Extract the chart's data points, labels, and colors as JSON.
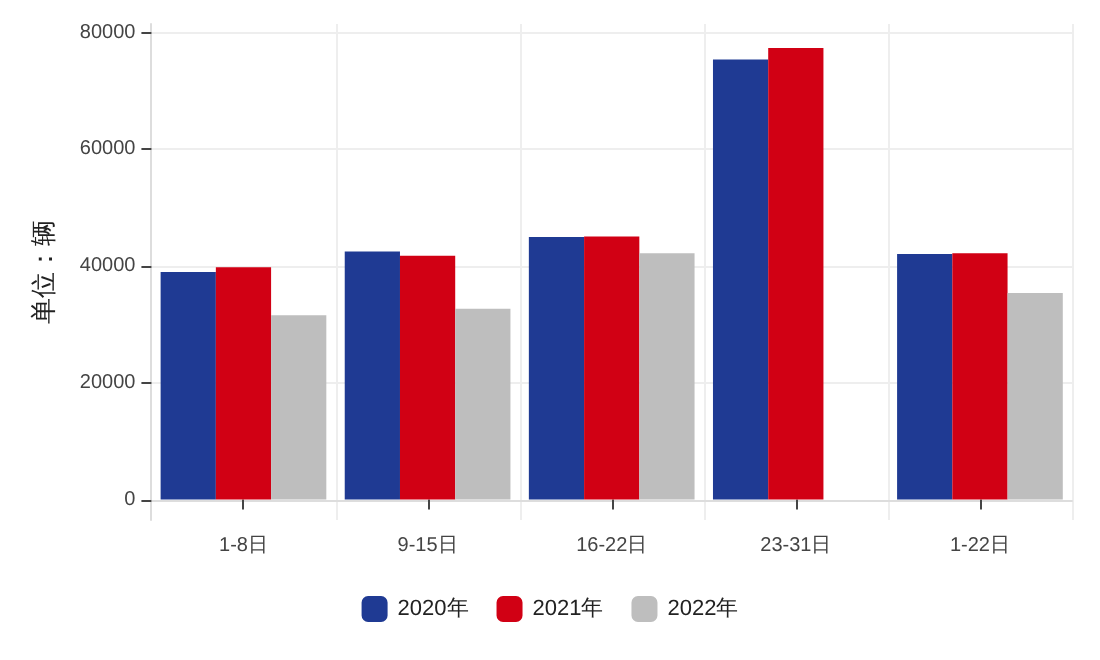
{
  "chart_data": {
    "type": "bar",
    "ylabel": "单位：辆",
    "categories": [
      "1-8日",
      "9-15日",
      "16-22日",
      "23-31日",
      "1-22日"
    ],
    "series": [
      {
        "name": "2020年",
        "color": "#1f3a93",
        "values": [
          39000,
          42500,
          45000,
          75400,
          42100
        ]
      },
      {
        "name": "2021年",
        "color": "#d10014",
        "values": [
          39800,
          41800,
          45100,
          77400,
          42200
        ]
      },
      {
        "name": "2022年",
        "color": "#bebebe",
        "values": [
          31600,
          32700,
          42200,
          null,
          35400
        ]
      }
    ],
    "ylim": [
      -3500,
      81500
    ],
    "yticks": [
      0,
      20000,
      40000,
      60000,
      80000
    ],
    "grid": true,
    "legend": "bottom"
  }
}
